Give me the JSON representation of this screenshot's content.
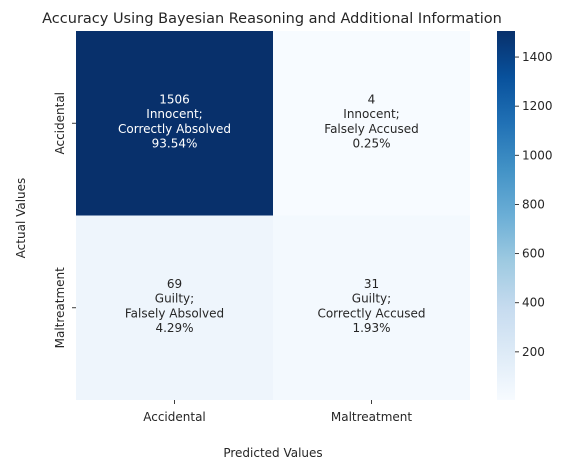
{
  "chart_data": {
    "type": "heatmap",
    "title": "Accuracy Using Bayesian Reasoning and Additional Information",
    "xlabel": "Predicted Values",
    "ylabel": "Actual Values",
    "x_categories": [
      "Accidental",
      "Maltreatment"
    ],
    "y_categories": [
      "Accidental",
      "Maltreatment"
    ],
    "cells": [
      [
        {
          "value": 1506,
          "label1": "Innocent;",
          "label2": "Correctly Absolved",
          "percent": "93.54%"
        },
        {
          "value": 4,
          "label1": "Innocent;",
          "label2": "Falsely Accused",
          "percent": "0.25%"
        }
      ],
      [
        {
          "value": 69,
          "label1": "Guilty;",
          "label2": "Falsely Absolved",
          "percent": "4.29%"
        },
        {
          "value": 31,
          "label1": "Guilty;",
          "label2": "Correctly Accused",
          "percent": "1.93%"
        }
      ]
    ],
    "colormap": "Blues",
    "colorbar": {
      "min": 4,
      "max": 1506,
      "ticks": [
        200,
        400,
        600,
        800,
        1000,
        1200,
        1400
      ]
    }
  }
}
